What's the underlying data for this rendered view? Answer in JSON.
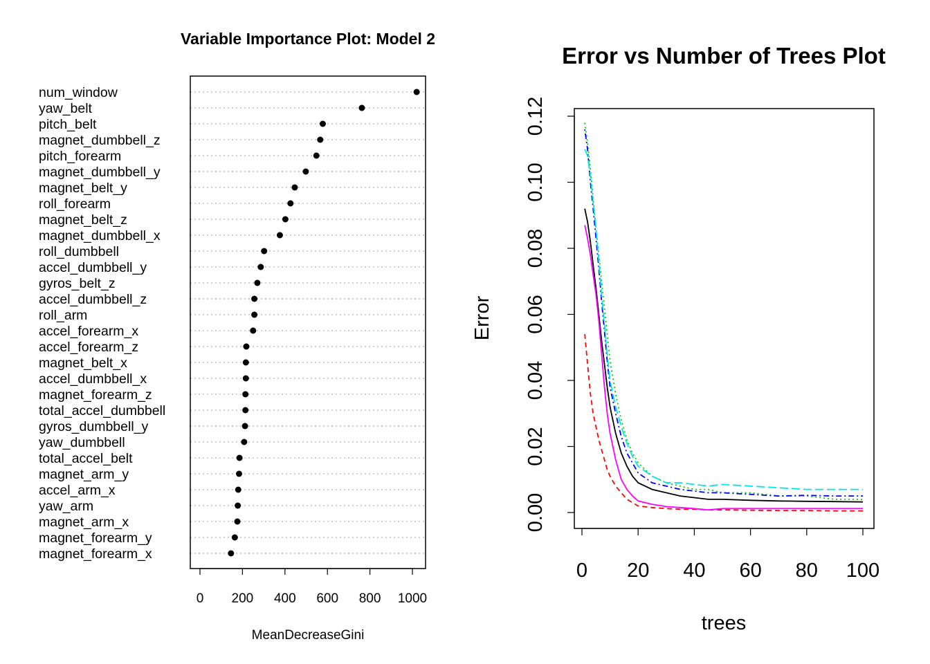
{
  "chart_data": [
    {
      "type": "scatter",
      "title": "Variable Importance Plot: Model 2",
      "xlabel": "MeanDecreaseGini",
      "xlim": [
        0,
        1000
      ],
      "x_ticks": [
        0,
        200,
        400,
        600,
        800,
        1000
      ],
      "x_tick_labels": [
        "0",
        "200",
        "400",
        "600",
        "800",
        "1000"
      ],
      "categories": [
        "num_window",
        "yaw_belt",
        "pitch_belt",
        "magnet_dumbbell_z",
        "pitch_forearm",
        "magnet_dumbbell_y",
        "magnet_belt_y",
        "roll_forearm",
        "magnet_belt_z",
        "magnet_dumbbell_x",
        "roll_dumbbell",
        "accel_dumbbell_y",
        "gyros_belt_z",
        "accel_dumbbell_z",
        "roll_arm",
        "accel_forearm_x",
        "accel_forearm_z",
        "magnet_belt_x",
        "accel_dumbbell_x",
        "magnet_forearm_z",
        "total_accel_dumbbell",
        "gyros_dumbbell_y",
        "yaw_dumbbell",
        "total_accel_belt",
        "magnet_arm_y",
        "accel_arm_x",
        "yaw_arm",
        "magnet_arm_x",
        "magnet_forearm_y",
        "magnet_forearm_x"
      ],
      "values": [
        1020,
        762,
        578,
        566,
        548,
        498,
        446,
        426,
        402,
        376,
        302,
        286,
        270,
        256,
        256,
        250,
        218,
        216,
        216,
        214,
        214,
        212,
        208,
        186,
        184,
        180,
        178,
        176,
        164,
        146
      ],
      "grid": "dotted-horizontal"
    },
    {
      "type": "line",
      "title": "Error vs Number of Trees Plot",
      "xlabel": "trees",
      "ylabel": "Error",
      "xlim": [
        0,
        100
      ],
      "ylim": [
        0,
        0.12
      ],
      "x_ticks": [
        0,
        20,
        40,
        60,
        80,
        100
      ],
      "x_tick_labels": [
        "0",
        "20",
        "40",
        "60",
        "80",
        "100"
      ],
      "y_ticks": [
        0,
        0.02,
        0.04,
        0.06,
        0.08,
        0.1,
        0.12
      ],
      "y_tick_labels": [
        "0.00",
        "0.02",
        "0.04",
        "0.06",
        "0.08",
        "0.10",
        "0.12"
      ],
      "x": [
        1,
        2,
        3,
        4,
        5,
        6,
        7,
        8,
        9,
        10,
        12,
        14,
        16,
        18,
        20,
        25,
        30,
        35,
        40,
        45,
        50,
        60,
        70,
        80,
        90,
        100
      ],
      "series": [
        {
          "color": "#000000",
          "dash": "solid",
          "values": [
            0.092,
            0.088,
            0.082,
            0.075,
            0.068,
            0.06,
            0.052,
            0.045,
            0.038,
            0.032,
            0.024,
            0.018,
            0.014,
            0.011,
            0.009,
            0.007,
            0.006,
            0.005,
            0.0045,
            0.004,
            0.004,
            0.0037,
            0.0035,
            0.0034,
            0.0033,
            0.0032
          ]
        },
        {
          "color": "#ff0000",
          "dash": "dashed",
          "values": [
            0.054,
            0.045,
            0.036,
            0.03,
            0.026,
            0.022,
            0.019,
            0.016,
            0.013,
            0.011,
            0.008,
            0.006,
            0.004,
            0.003,
            0.002,
            0.0015,
            0.0012,
            0.001,
            0.001,
            0.0008,
            0.0008,
            0.0007,
            0.0006,
            0.0006,
            0.0005,
            0.0005
          ]
        },
        {
          "color": "#00cc00",
          "dash": "dotted",
          "values": [
            0.118,
            0.112,
            0.104,
            0.095,
            0.086,
            0.078,
            0.07,
            0.062,
            0.054,
            0.046,
            0.036,
            0.028,
            0.022,
            0.018,
            0.015,
            0.011,
            0.009,
            0.008,
            0.007,
            0.007,
            0.006,
            0.006,
            0.005,
            0.005,
            0.004,
            0.004
          ]
        },
        {
          "color": "#0000ff",
          "dash": "dotdash",
          "values": [
            0.116,
            0.11,
            0.1,
            0.092,
            0.083,
            0.074,
            0.064,
            0.055,
            0.046,
            0.038,
            0.03,
            0.023,
            0.018,
            0.015,
            0.012,
            0.009,
            0.008,
            0.007,
            0.0065,
            0.006,
            0.006,
            0.0055,
            0.005,
            0.0052,
            0.005,
            0.005
          ]
        },
        {
          "color": "#00e5e5",
          "dash": "longdash",
          "values": [
            0.11,
            0.108,
            0.102,
            0.094,
            0.086,
            0.076,
            0.066,
            0.057,
            0.048,
            0.04,
            0.032,
            0.026,
            0.021,
            0.017,
            0.014,
            0.011,
            0.009,
            0.009,
            0.0085,
            0.008,
            0.0085,
            0.008,
            0.0075,
            0.007,
            0.007,
            0.007
          ]
        },
        {
          "color": "#ff00ff",
          "dash": "solid",
          "values": [
            0.087,
            0.083,
            0.078,
            0.072,
            0.066,
            0.058,
            0.048,
            0.038,
            0.03,
            0.024,
            0.016,
            0.01,
            0.007,
            0.005,
            0.0035,
            0.0025,
            0.0018,
            0.0015,
            0.0012,
            0.0008,
            0.0012,
            0.0012,
            0.0012,
            0.0012,
            0.0012,
            0.0012
          ]
        }
      ]
    }
  ]
}
